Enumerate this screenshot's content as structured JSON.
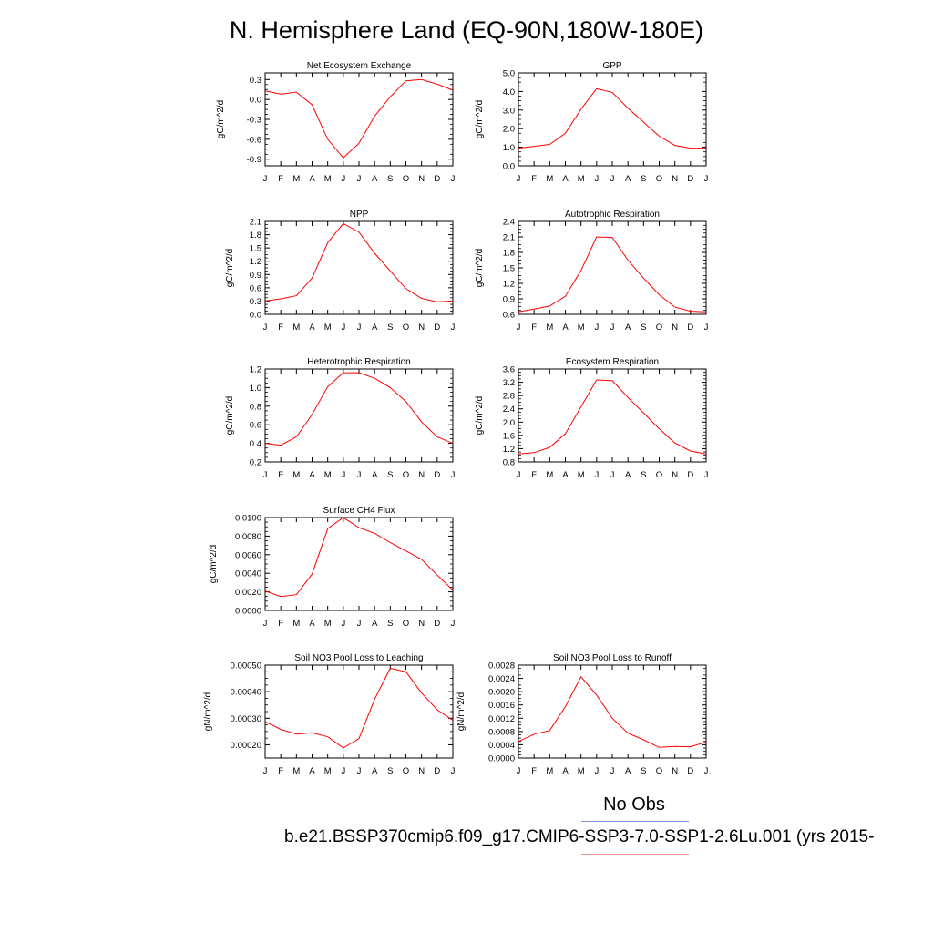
{
  "title": "N. Hemisphere Land (EQ-90N,180W-180E)",
  "legend": {
    "obs_label": "No Obs",
    "case_label": "b.e21.BSSP370cmip6.f09_g17.CMIP6-SSP3-7.0-SSP1-2.6Lu.001 (yrs 2015-",
    "obs_color": "#7f8ff0",
    "case_color": "#f08f8f"
  },
  "colors": {
    "series": "#ff0000",
    "axis": "#000000"
  },
  "chart_data": [
    {
      "type": "line",
      "title": "Net Ecosystem Exchange",
      "ylabel": "gC/m^2/d",
      "categories": [
        "J",
        "F",
        "M",
        "A",
        "M",
        "J",
        "J",
        "A",
        "S",
        "O",
        "N",
        "D",
        "J"
      ],
      "values": [
        0.13,
        0.08,
        0.11,
        -0.08,
        -0.6,
        -0.88,
        -0.66,
        -0.25,
        0.04,
        0.28,
        0.3,
        0.23,
        0.14
      ],
      "ylim": [
        -1.0,
        0.4
      ],
      "yticks": [
        -0.9,
        -0.6,
        -0.3,
        0.0,
        0.3
      ],
      "ytick_labels": [
        "-0.9",
        "-0.6",
        "-0.3",
        "0.0",
        "0.3"
      ]
    },
    {
      "type": "line",
      "title": "GPP",
      "ylabel": "gC/m^2/d",
      "categories": [
        "J",
        "F",
        "M",
        "A",
        "M",
        "J",
        "J",
        "A",
        "S",
        "O",
        "N",
        "D",
        "J"
      ],
      "values": [
        0.95,
        1.05,
        1.15,
        1.75,
        3.05,
        4.15,
        3.95,
        3.1,
        2.35,
        1.6,
        1.1,
        0.95,
        0.95
      ],
      "ylim": [
        0.0,
        5.0
      ],
      "yticks": [
        0.0,
        1.0,
        2.0,
        3.0,
        4.0,
        5.0
      ],
      "ytick_labels": [
        "0.0",
        "1.0",
        "2.0",
        "3.0",
        "4.0",
        "5.0"
      ]
    },
    {
      "type": "line",
      "title": "NPP",
      "ylabel": "gC/m^2/d",
      "categories": [
        "J",
        "F",
        "M",
        "A",
        "M",
        "J",
        "J",
        "A",
        "S",
        "O",
        "N",
        "D",
        "J"
      ],
      "values": [
        0.3,
        0.35,
        0.42,
        0.82,
        1.62,
        2.05,
        1.86,
        1.38,
        0.98,
        0.58,
        0.36,
        0.28,
        0.3
      ],
      "ylim": [
        0.0,
        2.1
      ],
      "yticks": [
        0.0,
        0.3,
        0.6,
        0.9,
        1.2,
        1.5,
        1.8,
        2.1
      ],
      "ytick_labels": [
        "0.0",
        "0.3",
        "0.6",
        "0.9",
        "1.2",
        "1.5",
        "1.8",
        "2.1"
      ]
    },
    {
      "type": "line",
      "title": "Autotrophic Respiration",
      "ylabel": "gC/m^2/d",
      "categories": [
        "J",
        "F",
        "M",
        "A",
        "M",
        "J",
        "J",
        "A",
        "S",
        "O",
        "N",
        "D",
        "J"
      ],
      "values": [
        0.65,
        0.7,
        0.76,
        0.95,
        1.45,
        2.1,
        2.09,
        1.65,
        1.3,
        0.98,
        0.74,
        0.66,
        0.65
      ],
      "ylim": [
        0.6,
        2.4
      ],
      "yticks": [
        0.6,
        0.9,
        1.2,
        1.5,
        1.8,
        2.1,
        2.4
      ],
      "ytick_labels": [
        "0.6",
        "0.9",
        "1.2",
        "1.5",
        "1.8",
        "2.1",
        "2.4"
      ]
    },
    {
      "type": "line",
      "title": "Heterotrophic Respiration",
      "ylabel": "gC/m^2/d",
      "categories": [
        "J",
        "F",
        "M",
        "A",
        "M",
        "J",
        "J",
        "A",
        "S",
        "O",
        "N",
        "D",
        "J"
      ],
      "values": [
        0.4,
        0.38,
        0.47,
        0.71,
        1.01,
        1.16,
        1.16,
        1.1,
        1.0,
        0.85,
        0.63,
        0.47,
        0.4
      ],
      "ylim": [
        0.2,
        1.2
      ],
      "yticks": [
        0.2,
        0.4,
        0.6,
        0.8,
        1.0,
        1.2
      ],
      "ytick_labels": [
        "0.2",
        "0.4",
        "0.6",
        "0.8",
        "1.0",
        "1.2"
      ]
    },
    {
      "type": "line",
      "title": "Ecosystem Respiration",
      "ylabel": "gC/m^2/d",
      "categories": [
        "J",
        "F",
        "M",
        "A",
        "M",
        "J",
        "J",
        "A",
        "S",
        "O",
        "N",
        "D",
        "J"
      ],
      "values": [
        1.04,
        1.08,
        1.24,
        1.65,
        2.46,
        3.27,
        3.25,
        2.74,
        2.28,
        1.8,
        1.37,
        1.13,
        1.04
      ],
      "ylim": [
        0.8,
        3.6
      ],
      "yticks": [
        0.8,
        1.2,
        1.6,
        2.0,
        2.4,
        2.8,
        3.2,
        3.6
      ],
      "ytick_labels": [
        "0.8",
        "1.2",
        "1.6",
        "2.0",
        "2.4",
        "2.8",
        "3.2",
        "3.6"
      ]
    },
    {
      "type": "line",
      "title": "Surface CH4 Flux",
      "ylabel": "gC/m^2/d",
      "categories": [
        "J",
        "F",
        "M",
        "A",
        "M",
        "J",
        "J",
        "A",
        "S",
        "O",
        "N",
        "D",
        "J"
      ],
      "values": [
        0.0021,
        0.0015,
        0.0017,
        0.0039,
        0.0088,
        0.01,
        0.0089,
        0.0083,
        0.0073,
        0.0064,
        0.0055,
        0.0038,
        0.0022
      ],
      "ylim": [
        0.0,
        0.01
      ],
      "yticks": [
        0.0,
        0.002,
        0.004,
        0.006,
        0.008,
        0.01
      ],
      "ytick_labels": [
        "0.0000",
        "0.0020",
        "0.0040",
        "0.0060",
        "0.0080",
        "0.0100"
      ]
    },
    {
      "type": "line",
      "title": "Soil NO3 Pool Loss to Leaching",
      "ylabel": "gN/m^2/d",
      "categories": [
        "J",
        "F",
        "M",
        "A",
        "M",
        "J",
        "J",
        "A",
        "S",
        "O",
        "N",
        "D",
        "J"
      ],
      "values": [
        0.000287,
        0.000258,
        0.00024,
        0.000245,
        0.00023,
        0.000188,
        0.000223,
        0.000372,
        0.000488,
        0.000475,
        0.000395,
        0.000332,
        0.000292
      ],
      "ylim": [
        0.00015,
        0.0005
      ],
      "yticks": [
        0.0002,
        0.0003,
        0.0004,
        0.0005
      ],
      "ytick_labels": [
        "0.00020",
        "0.00030",
        "0.00040",
        "0.00050"
      ]
    },
    {
      "type": "line",
      "title": "Soil NO3 Pool Loss to Runoff",
      "ylabel": "gN/m^2/d",
      "categories": [
        "J",
        "F",
        "M",
        "A",
        "M",
        "J",
        "J",
        "A",
        "S",
        "O",
        "N",
        "D",
        "J"
      ],
      "values": [
        0.0005,
        0.00072,
        0.00083,
        0.00155,
        0.00245,
        0.0019,
        0.0012,
        0.00075,
        0.00055,
        0.00032,
        0.00035,
        0.00034,
        0.00048
      ],
      "ylim": [
        0.0,
        0.0028
      ],
      "yticks": [
        0.0,
        0.0004,
        0.0008,
        0.0012,
        0.0016,
        0.002,
        0.0024,
        0.0028
      ],
      "ytick_labels": [
        "0.0000",
        "0.0004",
        "0.0008",
        "0.0012",
        "0.0016",
        "0.0020",
        "0.0024",
        "0.0028"
      ]
    }
  ]
}
